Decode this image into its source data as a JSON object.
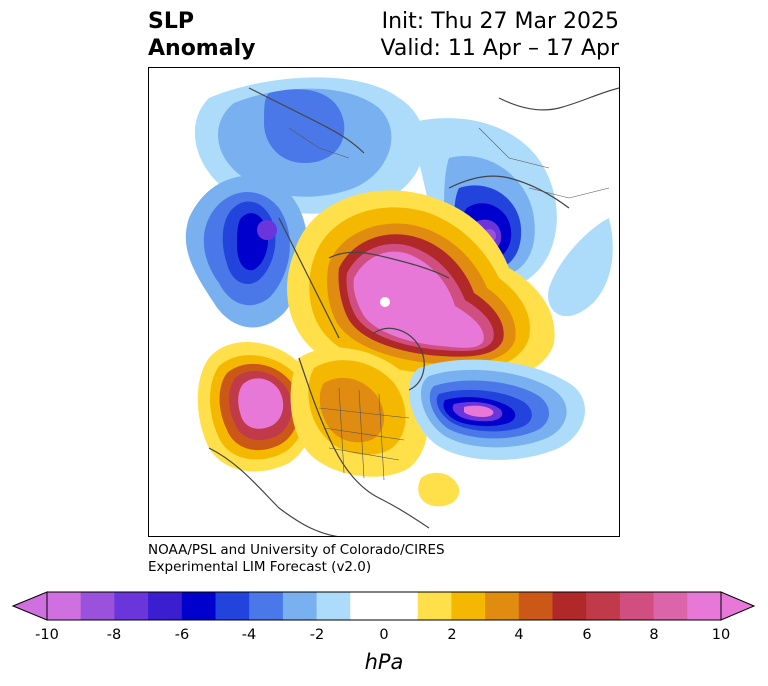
{
  "header": {
    "title_line1": "SLP",
    "title_line2": "Anomaly",
    "init_line": "Init: Thu 27 Mar 2025",
    "valid_line": "Valid: 11 Apr – 17 Apr"
  },
  "credit": {
    "line1": "NOAA/PSL and University of Colorado/CIRES",
    "line2": "Experimental LIM Forecast (v2.0)"
  },
  "colorbar": {
    "unit_label": "hPa",
    "tick_labels": [
      "-10",
      "-8",
      "-6",
      "-4",
      "-2",
      "0",
      "2",
      "4",
      "6",
      "8",
      "10"
    ],
    "colors": [
      "#d070e0",
      "#9a52dc",
      "#6a36dc",
      "#3a1ed0",
      "#0000cc",
      "#2244dd",
      "#4a78e8",
      "#78b0f0",
      "#acdcfa",
      "#ffffff",
      "#ffffff",
      "#ffe04a",
      "#f4b800",
      "#e08c10",
      "#cc5818",
      "#b02828",
      "#c03a4a",
      "#d04e80",
      "#dc64a8",
      "#e878d8"
    ]
  },
  "map": {
    "projection": "north-polar-stereographic",
    "field": "sea level pressure anomaly"
  }
}
